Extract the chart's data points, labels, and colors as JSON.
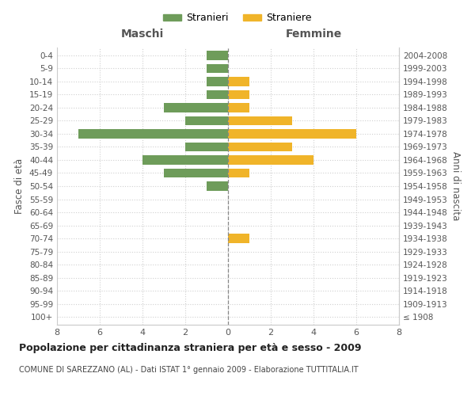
{
  "age_groups": [
    "100+",
    "95-99",
    "90-94",
    "85-89",
    "80-84",
    "75-79",
    "70-74",
    "65-69",
    "60-64",
    "55-59",
    "50-54",
    "45-49",
    "40-44",
    "35-39",
    "30-34",
    "25-29",
    "20-24",
    "15-19",
    "10-14",
    "5-9",
    "0-4"
  ],
  "birth_years": [
    "≤ 1908",
    "1909-1913",
    "1914-1918",
    "1919-1923",
    "1924-1928",
    "1929-1933",
    "1934-1938",
    "1939-1943",
    "1944-1948",
    "1949-1953",
    "1954-1958",
    "1959-1963",
    "1964-1968",
    "1969-1973",
    "1974-1978",
    "1979-1983",
    "1984-1988",
    "1989-1993",
    "1994-1998",
    "1999-2003",
    "2004-2008"
  ],
  "maschi": [
    0,
    0,
    0,
    0,
    0,
    0,
    0,
    0,
    0,
    0,
    1,
    3,
    4,
    2,
    7,
    2,
    3,
    1,
    1,
    1,
    1
  ],
  "femmine": [
    0,
    0,
    0,
    0,
    0,
    0,
    1,
    0,
    0,
    0,
    0,
    1,
    4,
    3,
    6,
    3,
    1,
    1,
    1,
    0,
    0
  ],
  "maschi_color": "#6e9c5a",
  "femmine_color": "#f0b429",
  "title": "Popolazione per cittadinanza straniera per età e sesso - 2009",
  "subtitle": "COMUNE DI SAREZZANO (AL) - Dati ISTAT 1° gennaio 2009 - Elaborazione TUTTITALIA.IT",
  "xlabel_left": "Maschi",
  "xlabel_right": "Femmine",
  "ylabel_left": "Fasce di età",
  "ylabel_right": "Anni di nascita",
  "legend_maschi": "Stranieri",
  "legend_femmine": "Straniere",
  "xlim": 8,
  "background_color": "#ffffff",
  "grid_color": "#d0d0d0"
}
